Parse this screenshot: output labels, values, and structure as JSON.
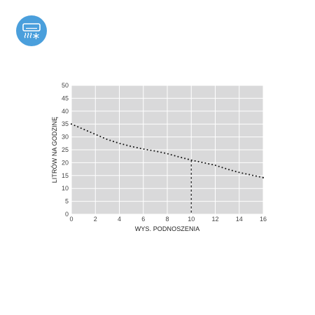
{
  "header": {
    "icon": "air-conditioner-cooling-icon",
    "icon_color": "#4a9fdc"
  },
  "chart_data": {
    "type": "line",
    "xlabel": "WYS. PODNOSZENIA",
    "ylabel": "LITRÓW NA GODZINĘ",
    "xlim": [
      0,
      16
    ],
    "ylim": [
      0,
      50
    ],
    "x_ticks": [
      0,
      2,
      4,
      6,
      8,
      10,
      12,
      14,
      16
    ],
    "y_ticks": [
      0,
      5,
      10,
      15,
      20,
      25,
      30,
      35,
      40,
      45,
      50
    ],
    "grid": true,
    "plot_background": "#d9d9da",
    "grid_color": "#ffffff",
    "line_style": "dotted",
    "line_color": "#1a1a1a",
    "series": [
      {
        "x": [
          0,
          1,
          2,
          3,
          4,
          5,
          6,
          7,
          8,
          9,
          10,
          11,
          12,
          13,
          14,
          15,
          16
        ],
        "y": [
          35,
          33,
          31,
          29,
          27.5,
          26.3,
          25.3,
          24.5,
          23.5,
          22.2,
          21,
          20,
          19,
          17.5,
          16.2,
          15.2,
          14.2
        ]
      }
    ],
    "reference_line": {
      "x": 10,
      "y": 21,
      "style": "dashed"
    }
  }
}
